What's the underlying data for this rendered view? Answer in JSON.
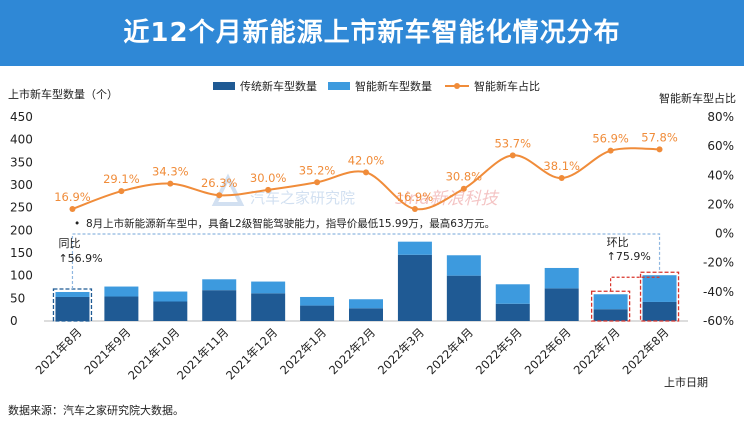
{
  "banner": {
    "title": "近12个月新能源上市新车智能化情况分布"
  },
  "chart_data": {
    "type": "bar+line",
    "categories": [
      "2021年8月",
      "2021年9月",
      "2021年10月",
      "2021年11月",
      "2021年12月",
      "2022年1月",
      "2022年2月",
      "2022年3月",
      "2022年4月",
      "2022年5月",
      "2022年6月",
      "2022年7月",
      "2022年8月"
    ],
    "series": [
      {
        "name": "传统新车型数量",
        "type": "bar",
        "stack": "total",
        "color": "#1f5a94",
        "values": [
          53,
          54,
          43,
          68,
          61,
          34,
          28,
          146,
          100,
          38,
          72,
          26,
          42
        ]
      },
      {
        "name": "智能新车型数量",
        "type": "bar",
        "stack": "total",
        "color": "#3d9ade",
        "values": [
          11,
          22,
          22,
          24,
          26,
          19,
          20,
          29,
          45,
          43,
          45,
          33,
          59
        ]
      },
      {
        "name": "智能新车占比",
        "type": "line",
        "axis": "right",
        "color": "#f08c3a",
        "values": [
          16.9,
          29.1,
          34.3,
          26.3,
          30.0,
          35.2,
          42.0,
          16.9,
          30.8,
          53.7,
          38.1,
          56.9,
          57.8
        ],
        "labels": [
          "16.9%",
          "29.1%",
          "34.3%",
          "26.3%",
          "30.0%",
          "35.2%",
          "42.0%",
          "16.9%",
          "30.8%",
          "53.7%",
          "38.1%",
          "56.9%",
          "57.8%"
        ]
      }
    ],
    "ylabel_left": "上市新车型数量（个）",
    "ylabel_right": "智能新车型占比",
    "xlabel": "上市日期",
    "ylim_left": [
      0,
      450
    ],
    "yticks_left": [
      "0",
      "50",
      "100",
      "150",
      "200",
      "250",
      "300",
      "350",
      "400",
      "450"
    ],
    "ylim_right": [
      -60,
      80
    ],
    "yticks_right": [
      "-60%",
      "-40%",
      "-20%",
      "0%",
      "20%",
      "40%",
      "60%",
      "80%"
    ],
    "annotations": {
      "note": "8月上市新能源新车型中，具备L2级智能驾驶能力，指导价最低15.99万，最高63万元。",
      "yoy_label": "同比",
      "yoy_value": "↑56.9%",
      "mom_label": "环比",
      "mom_value": "↑75.9%"
    },
    "watermarks": [
      "汽车之家研究院",
      "sina新浪科技"
    ]
  },
  "footer": {
    "source": "数据来源：汽车之家研究院大数据。"
  }
}
